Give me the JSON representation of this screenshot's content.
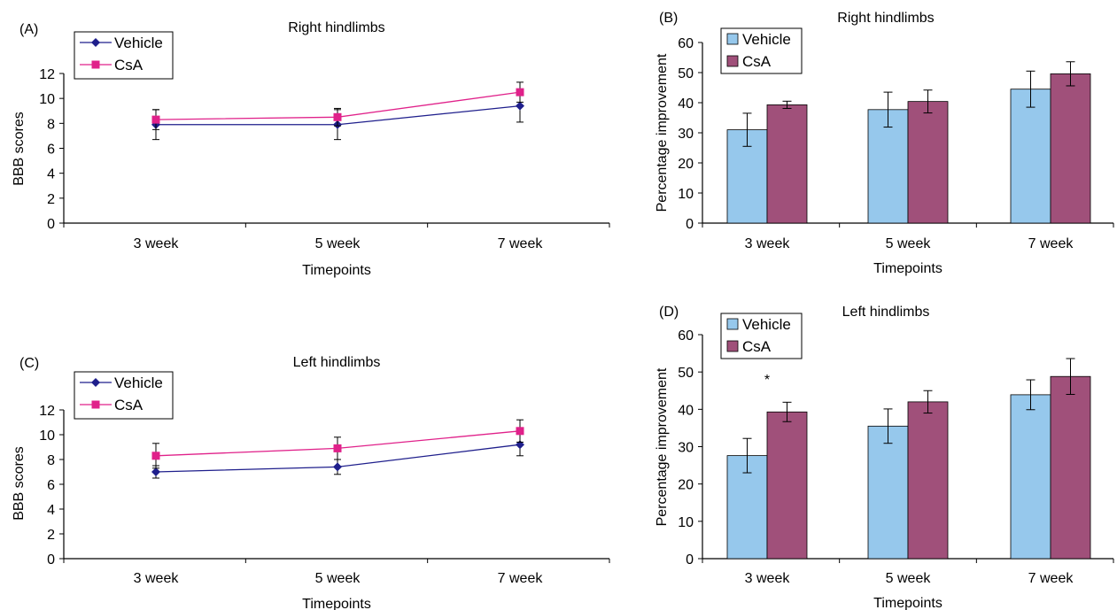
{
  "chart_data": [
    {
      "panel_label": "(A)",
      "type": "line",
      "title": "Right hindlimbs",
      "xlabel": "Timepoints",
      "ylabel": "BBB scores",
      "categories": [
        "3 week",
        "5 week",
        "7 week"
      ],
      "ylim": [
        0,
        12
      ],
      "yticks": [
        "0",
        "2",
        "4",
        "6",
        "8",
        "10",
        "12"
      ],
      "legend_position": "top-left",
      "series": [
        {
          "name": "Vehicle",
          "color": "#1f1f8c",
          "marker": "diamond",
          "values": [
            7.9,
            7.9,
            9.4
          ],
          "errors": [
            1.2,
            1.2,
            1.3
          ]
        },
        {
          "name": "CsA",
          "color": "#e0218a",
          "marker": "square",
          "values": [
            8.3,
            8.5,
            10.5
          ],
          "errors": [
            0.8,
            0.7,
            0.8
          ]
        }
      ]
    },
    {
      "panel_label": "(B)",
      "type": "bar",
      "title": "Right hindlimbs",
      "xlabel": "Timepoints",
      "ylabel": "Percentage improvement",
      "categories": [
        "3 week",
        "5 week",
        "7 week"
      ],
      "ylim": [
        0,
        60
      ],
      "yticks": [
        "0",
        "10",
        "20",
        "30",
        "40",
        "50",
        "60"
      ],
      "legend_position": "top-left",
      "annotation": "",
      "series": [
        {
          "name": "Vehicle",
          "color": "#96c8ec",
          "values": [
            31,
            37.7,
            44.5
          ],
          "errors": [
            5.5,
            5.8,
            6
          ]
        },
        {
          "name": "CsA",
          "color": "#a0507a",
          "values": [
            39.3,
            40.4,
            49.6
          ],
          "errors": [
            1.2,
            3.8,
            4
          ]
        }
      ]
    },
    {
      "panel_label": "(C)",
      "type": "line",
      "title": "Left hindlimbs",
      "xlabel": "Timepoints",
      "ylabel": "BBB scores",
      "categories": [
        "3 week",
        "5 week",
        "7 week"
      ],
      "ylim": [
        0,
        12
      ],
      "yticks": [
        "0",
        "2",
        "4",
        "6",
        "8",
        "10",
        "12"
      ],
      "legend_position": "top-left",
      "series": [
        {
          "name": "Vehicle",
          "color": "#1f1f8c",
          "marker": "diamond",
          "values": [
            7.0,
            7.4,
            9.2
          ],
          "errors": [
            0.5,
            0.6,
            0.9
          ]
        },
        {
          "name": "CsA",
          "color": "#e0218a",
          "marker": "square",
          "values": [
            8.3,
            8.9,
            10.3
          ],
          "errors": [
            1.0,
            0.9,
            0.9
          ]
        }
      ]
    },
    {
      "panel_label": "(D)",
      "type": "bar",
      "title": "Left hindlimbs",
      "xlabel": "Timepoints",
      "ylabel": "Percentage improvement",
      "categories": [
        "3 week",
        "5 week",
        "7 week"
      ],
      "ylim": [
        0,
        60
      ],
      "yticks": [
        "0",
        "10",
        "20",
        "30",
        "40",
        "50",
        "60"
      ],
      "legend_position": "top-left",
      "annotation": "*",
      "series": [
        {
          "name": "Vehicle",
          "color": "#96c8ec",
          "values": [
            27.6,
            35.5,
            43.9
          ],
          "errors": [
            4.6,
            4.6,
            4
          ]
        },
        {
          "name": "CsA",
          "color": "#a0507a",
          "values": [
            39.3,
            42,
            48.8
          ],
          "errors": [
            2.6,
            3,
            4.8
          ]
        }
      ]
    }
  ]
}
